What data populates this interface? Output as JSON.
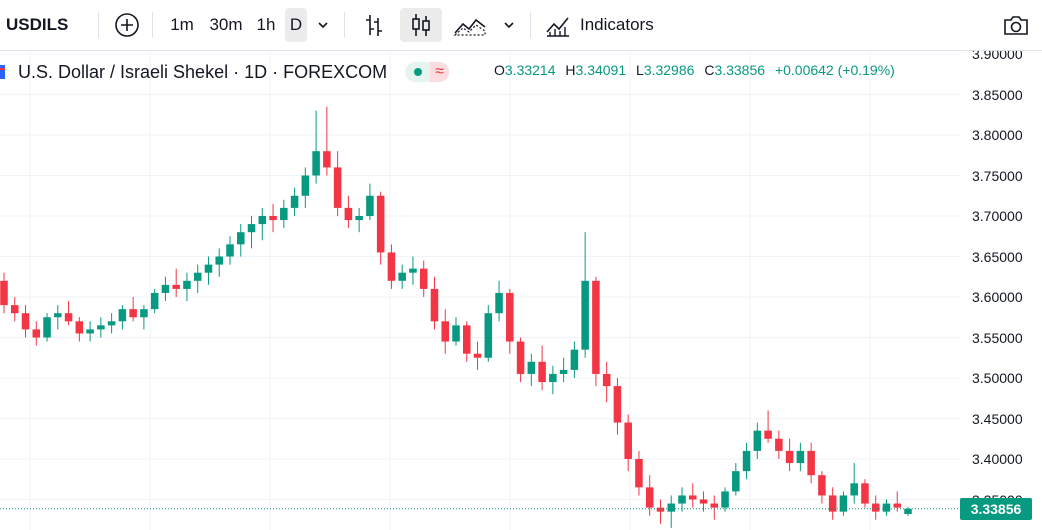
{
  "toolbar": {
    "symbol": "USDILS",
    "intervals": [
      "1m",
      "30m",
      "1h",
      "D"
    ],
    "active_interval": "D",
    "indicators_label": "Indicators"
  },
  "legend": {
    "title": "U.S. Dollar / Israeli Shekel · 1D · FOREXCOM",
    "ohlc": {
      "o_label": "O",
      "o": "3.33214",
      "h_label": "H",
      "h": "3.34091",
      "l_label": "L",
      "l": "3.32986",
      "c_label": "C",
      "c": "3.33856",
      "change": "+0.00642 (+0.19%)"
    }
  },
  "colors": {
    "up": "#089981",
    "down": "#f23645",
    "accent": "#2962ff"
  },
  "price_axis": {
    "ticks": [
      "3.90000",
      "3.85000",
      "3.80000",
      "3.75000",
      "3.70000",
      "3.65000",
      "3.60000",
      "3.55000",
      "3.50000",
      "3.45000",
      "3.40000",
      "3.35000"
    ],
    "last_price": "3.33856"
  },
  "chart_data": {
    "type": "candlestick",
    "ylim": [
      3.33,
      3.9
    ],
    "ohlc": [
      [
        3.62,
        3.63,
        3.58,
        3.59
      ],
      [
        3.59,
        3.6,
        3.57,
        3.58
      ],
      [
        3.58,
        3.59,
        3.55,
        3.56
      ],
      [
        3.56,
        3.57,
        3.54,
        3.55
      ],
      [
        3.55,
        3.58,
        3.545,
        3.575
      ],
      [
        3.575,
        3.59,
        3.56,
        3.58
      ],
      [
        3.58,
        3.595,
        3.565,
        3.57
      ],
      [
        3.57,
        3.575,
        3.545,
        3.555
      ],
      [
        3.555,
        3.57,
        3.545,
        3.56
      ],
      [
        3.56,
        3.575,
        3.55,
        3.565
      ],
      [
        3.565,
        3.58,
        3.555,
        3.57
      ],
      [
        3.57,
        3.59,
        3.56,
        3.585
      ],
      [
        3.585,
        3.6,
        3.57,
        3.575
      ],
      [
        3.575,
        3.59,
        3.56,
        3.585
      ],
      [
        3.585,
        3.61,
        3.58,
        3.605
      ],
      [
        3.605,
        3.625,
        3.595,
        3.615
      ],
      [
        3.615,
        3.635,
        3.6,
        3.61
      ],
      [
        3.61,
        3.63,
        3.595,
        3.62
      ],
      [
        3.62,
        3.64,
        3.605,
        3.63
      ],
      [
        3.63,
        3.65,
        3.615,
        3.64
      ],
      [
        3.64,
        3.66,
        3.625,
        3.65
      ],
      [
        3.65,
        3.675,
        3.64,
        3.665
      ],
      [
        3.665,
        3.69,
        3.65,
        3.68
      ],
      [
        3.68,
        3.7,
        3.66,
        3.69
      ],
      [
        3.69,
        3.71,
        3.67,
        3.7
      ],
      [
        3.7,
        3.715,
        3.68,
        3.695
      ],
      [
        3.695,
        3.72,
        3.685,
        3.71
      ],
      [
        3.71,
        3.735,
        3.7,
        3.725
      ],
      [
        3.725,
        3.76,
        3.71,
        3.75
      ],
      [
        3.75,
        3.83,
        3.74,
        3.78
      ],
      [
        3.78,
        3.835,
        3.75,
        3.76
      ],
      [
        3.76,
        3.78,
        3.7,
        3.71
      ],
      [
        3.71,
        3.725,
        3.685,
        3.695
      ],
      [
        3.695,
        3.71,
        3.68,
        3.7
      ],
      [
        3.7,
        3.74,
        3.695,
        3.725
      ],
      [
        3.725,
        3.73,
        3.64,
        3.655
      ],
      [
        3.655,
        3.665,
        3.61,
        3.62
      ],
      [
        3.62,
        3.64,
        3.61,
        3.63
      ],
      [
        3.63,
        3.65,
        3.615,
        3.635
      ],
      [
        3.635,
        3.645,
        3.6,
        3.61
      ],
      [
        3.61,
        3.625,
        3.56,
        3.57
      ],
      [
        3.57,
        3.585,
        3.53,
        3.545
      ],
      [
        3.545,
        3.575,
        3.54,
        3.565
      ],
      [
        3.565,
        3.57,
        3.52,
        3.53
      ],
      [
        3.53,
        3.545,
        3.51,
        3.525
      ],
      [
        3.525,
        3.59,
        3.52,
        3.58
      ],
      [
        3.58,
        3.62,
        3.57,
        3.605
      ],
      [
        3.605,
        3.61,
        3.53,
        3.545
      ],
      [
        3.545,
        3.55,
        3.495,
        3.505
      ],
      [
        3.505,
        3.53,
        3.49,
        3.52
      ],
      [
        3.52,
        3.54,
        3.485,
        3.495
      ],
      [
        3.495,
        3.515,
        3.48,
        3.505
      ],
      [
        3.505,
        3.525,
        3.495,
        3.51
      ],
      [
        3.51,
        3.545,
        3.5,
        3.535
      ],
      [
        3.535,
        3.68,
        3.525,
        3.62
      ],
      [
        3.62,
        3.625,
        3.49,
        3.505
      ],
      [
        3.505,
        3.52,
        3.47,
        3.49
      ],
      [
        3.49,
        3.5,
        3.43,
        3.445
      ],
      [
        3.445,
        3.455,
        3.385,
        3.4
      ],
      [
        3.4,
        3.41,
        3.355,
        3.365
      ],
      [
        3.365,
        3.38,
        3.33,
        3.34
      ],
      [
        3.34,
        3.35,
        3.32,
        3.335
      ],
      [
        3.335,
        3.355,
        3.315,
        3.345
      ],
      [
        3.345,
        3.365,
        3.335,
        3.355
      ],
      [
        3.355,
        3.37,
        3.34,
        3.35
      ],
      [
        3.35,
        3.36,
        3.335,
        3.345
      ],
      [
        3.345,
        3.355,
        3.325,
        3.34
      ],
      [
        3.34,
        3.365,
        3.335,
        3.36
      ],
      [
        3.36,
        3.395,
        3.355,
        3.385
      ],
      [
        3.385,
        3.42,
        3.375,
        3.41
      ],
      [
        3.41,
        3.445,
        3.4,
        3.435
      ],
      [
        3.435,
        3.46,
        3.42,
        3.425
      ],
      [
        3.425,
        3.435,
        3.4,
        3.41
      ],
      [
        3.41,
        3.425,
        3.385,
        3.395
      ],
      [
        3.395,
        3.42,
        3.385,
        3.41
      ],
      [
        3.41,
        3.42,
        3.37,
        3.38
      ],
      [
        3.38,
        3.385,
        3.345,
        3.355
      ],
      [
        3.355,
        3.365,
        3.325,
        3.335
      ],
      [
        3.335,
        3.36,
        3.33,
        3.355
      ],
      [
        3.355,
        3.395,
        3.345,
        3.37
      ],
      [
        3.37,
        3.375,
        3.34,
        3.345
      ],
      [
        3.345,
        3.355,
        3.325,
        3.335
      ],
      [
        3.335,
        3.35,
        3.33,
        3.345
      ],
      [
        3.345,
        3.36,
        3.335,
        3.34
      ],
      [
        3.33214,
        3.34091,
        3.32986,
        3.33856
      ]
    ]
  }
}
